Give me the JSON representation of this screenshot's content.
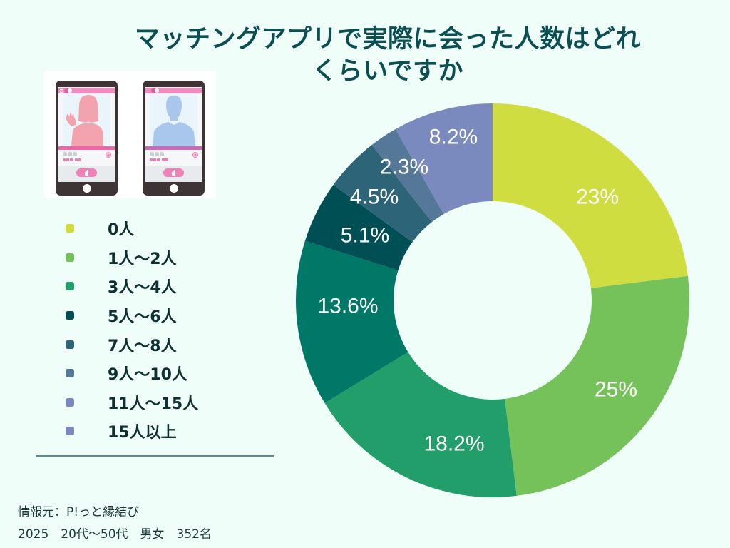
{
  "title": {
    "line1": "マッチングアプリで実際に会った人数はどれ",
    "line2": "くらいですか"
  },
  "illustration": {
    "icons": [
      "phone-woman-profile-icon",
      "phone-man-profile-icon"
    ]
  },
  "legend": {
    "items": [
      {
        "label": "0人",
        "color": "#D0DD40"
      },
      {
        "label": "1人〜2人",
        "color": "#76C25A"
      },
      {
        "label": "3人〜4人",
        "color": "#229E6A"
      },
      {
        "label": "5人〜6人",
        "color": "#004D52"
      },
      {
        "label": "7人〜8人",
        "color": "#2D6478"
      },
      {
        "label": "9人〜10人",
        "color": "#557898"
      },
      {
        "label": "11人〜15人",
        "color": "#7A8ABE"
      },
      {
        "label": "15人以上",
        "color": "#7A8ABE"
      }
    ]
  },
  "source": {
    "line1": "情報元：P!っと縁結び",
    "line2": "2025　20代〜50代　男女　352名"
  },
  "chart_data": {
    "type": "pie",
    "variant": "donut",
    "title": "マッチングアプリで実際に会った人数はどれくらいですか",
    "categories": [
      "0人",
      "1人〜2人",
      "3人〜4人",
      "5人〜6人",
      "7人〜8人",
      "9人〜10人",
      "11人〜15人",
      "15人以上"
    ],
    "values": [
      23,
      25,
      18.2,
      13.6,
      5.1,
      4.5,
      2.3,
      8.2
    ],
    "labels": [
      "23%",
      "25%",
      "18.2%",
      "13.6%",
      "5.1%",
      "4.5%",
      "2.3%",
      "8.2%"
    ],
    "colors": [
      "#D0DD40",
      "#76C25A",
      "#229E6A",
      "#007868",
      "#004F55",
      "#2E6478",
      "#557899",
      "#7A8ABE"
    ],
    "unit": "%",
    "legend_position": "left",
    "center": [
      691,
      421
    ],
    "outer_radius": 276,
    "inner_radius": 139,
    "start_angle_deg": 0,
    "direction": "clockwise",
    "label_positions": [
      [
        838,
        276
      ],
      [
        864,
        546
      ],
      [
        637,
        622
      ],
      [
        488,
        429
      ],
      [
        512,
        330
      ],
      [
        525,
        276
      ],
      [
        567,
        234
      ],
      [
        636,
        192
      ]
    ]
  }
}
